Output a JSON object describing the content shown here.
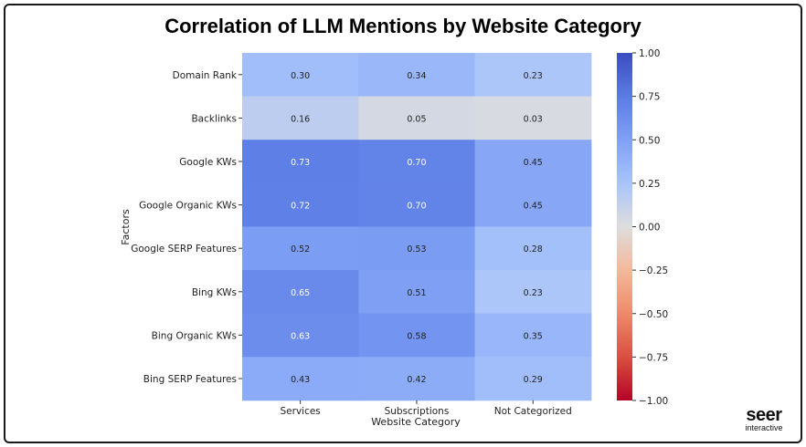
{
  "chart_data": {
    "type": "heatmap",
    "title": "Correlation of LLM Mentions by Website Category",
    "xlabel": "Website Category",
    "ylabel": "Factors",
    "columns": [
      "Services",
      "Subscriptions",
      "Not Categorized"
    ],
    "rows": [
      "Domain Rank",
      "Backlinks",
      "Google KWs",
      "Google Organic KWs",
      "Google SERP Features",
      "Bing KWs",
      "Bing Organic KWs",
      "Bing SERP Features"
    ],
    "values": [
      [
        0.3,
        0.34,
        0.23
      ],
      [
        0.16,
        0.05,
        0.03
      ],
      [
        0.73,
        0.7,
        0.45
      ],
      [
        0.72,
        0.7,
        0.45
      ],
      [
        0.52,
        0.53,
        0.28
      ],
      [
        0.65,
        0.51,
        0.23
      ],
      [
        0.63,
        0.58,
        0.35
      ],
      [
        0.43,
        0.42,
        0.29
      ]
    ],
    "cell_labels": [
      [
        "0.30",
        "0.34",
        "0.23"
      ],
      [
        "0.16",
        "0.05",
        "0.03"
      ],
      [
        "0.73",
        "0.70",
        "0.45"
      ],
      [
        "0.72",
        "0.70",
        "0.45"
      ],
      [
        "0.52",
        "0.53",
        "0.28"
      ],
      [
        "0.65",
        "0.51",
        "0.23"
      ],
      [
        "0.63",
        "0.58",
        "0.35"
      ],
      [
        "0.43",
        "0.42",
        "0.29"
      ]
    ],
    "colorbar": {
      "range": [
        -1.0,
        1.0
      ],
      "colormap": "coolwarm",
      "ticks": [
        "1.00",
        "0.75",
        "0.50",
        "0.25",
        "0.00",
        "−0.25",
        "−0.50",
        "−0.75",
        "−1.00"
      ]
    }
  },
  "branding": {
    "name": "seer",
    "tagline": "interactive"
  }
}
